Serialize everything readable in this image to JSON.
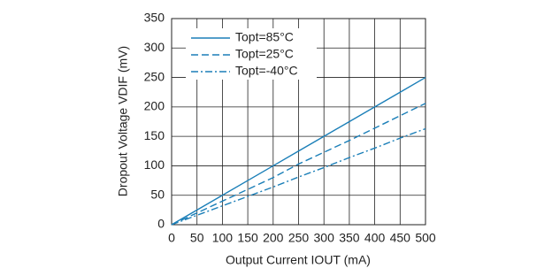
{
  "chart_data": {
    "type": "line",
    "xlabel": "Output Current IOUT (mA)",
    "ylabel": "Dropout Voltage VDIF (mV)",
    "x": [
      0,
      50,
      100,
      150,
      200,
      250,
      300,
      350,
      400,
      450,
      500
    ],
    "series": [
      {
        "name": "Topt=85°C",
        "color": "#1b7fb8",
        "linestyle": "solid",
        "values": [
          0,
          25,
          50,
          75,
          100,
          125,
          150,
          175,
          200,
          225,
          250
        ]
      },
      {
        "name": "Topt=25°C",
        "color": "#1b7fb8",
        "linestyle": "dashed",
        "values": [
          0,
          20,
          40,
          60,
          80,
          103,
          123,
          143,
          164,
          185,
          206
        ]
      },
      {
        "name": "Topt=-40°C",
        "color": "#1b7fb8",
        "linestyle": "dashdot",
        "values": [
          0,
          16,
          32,
          48,
          64,
          81,
          97,
          114,
          130,
          147,
          163
        ]
      }
    ],
    "xlim": [
      0,
      500
    ],
    "xticks": [
      0,
      50,
      100,
      150,
      200,
      250,
      300,
      350,
      400,
      450,
      500
    ],
    "ylim": [
      0,
      350
    ],
    "yticks": [
      0,
      50,
      100,
      150,
      200,
      250,
      300,
      350
    ],
    "grid": true,
    "legend": "upper-left"
  }
}
